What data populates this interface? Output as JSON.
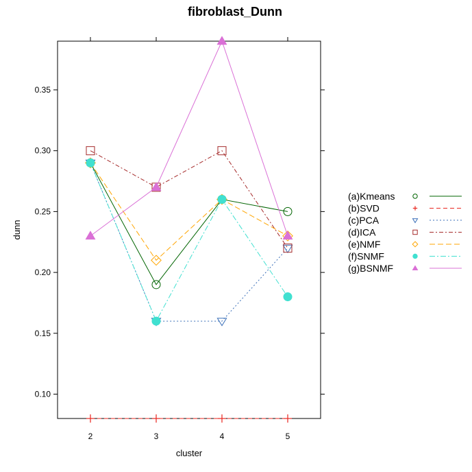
{
  "chart_data": {
    "type": "line",
    "title": "fibroblast_Dunn",
    "xlabel": "cluster",
    "ylabel": "dunn",
    "categories": [
      "2",
      "3",
      "4",
      "5"
    ],
    "x": [
      2,
      3,
      4,
      5
    ],
    "xlim": [
      1.5,
      5.5
    ],
    "ylim": [
      0.08,
      0.39
    ],
    "yticks": [
      0.1,
      0.15,
      0.2,
      0.25,
      0.3,
      0.35
    ],
    "ytick_labels": [
      "0.10",
      "0.15",
      "0.20",
      "0.25",
      "0.30",
      "0.35"
    ],
    "grid": false,
    "legend_position": "right",
    "series": [
      {
        "name": "(a)Kmeans",
        "color": "#006400",
        "marker": "circle-open",
        "dash": "",
        "values": [
          0.29,
          0.19,
          0.26,
          0.25
        ]
      },
      {
        "name": "(b)SVD",
        "color": "#e8261f",
        "marker": "plus",
        "dash": "6,4",
        "values": [
          0.08,
          0.08,
          0.08,
          0.08
        ]
      },
      {
        "name": "(c)PCA",
        "color": "#3a6fb8",
        "marker": "triangle-down-open",
        "dash": "2,3",
        "values": [
          0.29,
          0.16,
          0.16,
          0.22
        ]
      },
      {
        "name": "(d)ICA",
        "color": "#a52a2a",
        "marker": "square-open",
        "dash": "6,3,2,3",
        "values": [
          0.3,
          0.27,
          0.3,
          0.22
        ]
      },
      {
        "name": "(e)NMF",
        "color": "#ffa500",
        "marker": "diamond-open",
        "dash": "8,4",
        "values": [
          0.29,
          0.21,
          0.26,
          0.23
        ]
      },
      {
        "name": "(f)SNMF",
        "color": "#40e0d0",
        "marker": "circle-filled",
        "dash": "8,3,2,3",
        "values": [
          0.29,
          0.16,
          0.26,
          0.18
        ]
      },
      {
        "name": "(g)BSNMF",
        "color": "#da70d6",
        "marker": "triangle-up-filled",
        "dash": "",
        "values": [
          0.23,
          0.27,
          0.39,
          0.23
        ]
      }
    ]
  }
}
